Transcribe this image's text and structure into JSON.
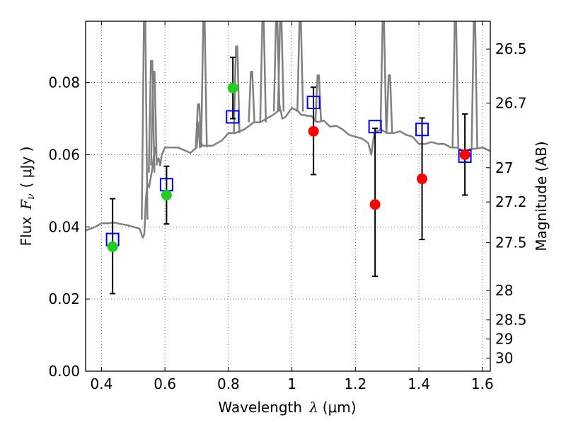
{
  "chart_data": {
    "type": "scatter",
    "xlabel": {
      "prefix": "Wavelength",
      "symbol": "λ",
      "unit": "(μm)"
    },
    "ylabel": {
      "prefix": "Flux",
      "symbol": "F",
      "subscript": "ν",
      "unit": "( μJy )"
    },
    "y2label": "Magnitude (AB)",
    "xlim": [
      0.35,
      1.625
    ],
    "ylim": [
      0.0,
      0.097
    ],
    "grid": true,
    "x_ticks": [
      0.4,
      0.6,
      0.8,
      1.0,
      1.2,
      1.4,
      1.6
    ],
    "x_tick_labels": [
      "0.4",
      "0.6",
      "0.8",
      "1",
      "1.2",
      "1.4",
      "1.6"
    ],
    "y_ticks": [
      0.0,
      0.02,
      0.04,
      0.06,
      0.08
    ],
    "y_tick_labels": [
      "0.00",
      "0.02",
      "0.04",
      "0.06",
      "0.08"
    ],
    "y2_ticks": [
      {
        "label": "26.5",
        "flux": 0.0893
      },
      {
        "label": "26.7",
        "flux": 0.0743
      },
      {
        "label": "27",
        "flux": 0.0564
      },
      {
        "label": "27.2",
        "flux": 0.0469
      },
      {
        "label": "27.5",
        "flux": 0.0356
      },
      {
        "label": "28",
        "flux": 0.0224
      },
      {
        "label": "28.5",
        "flux": 0.0142
      },
      {
        "label": "29",
        "flux": 0.0089
      },
      {
        "label": "30",
        "flux": 0.0036
      }
    ],
    "series": [
      {
        "name": "model_spectrum",
        "kind": "line",
        "color": "#808080",
        "x": [
          0.35,
          0.38,
          0.4,
          0.42,
          0.44,
          0.46,
          0.48,
          0.5,
          0.52,
          0.53,
          0.535,
          0.54,
          0.545,
          0.55,
          0.56,
          0.565,
          0.57,
          0.575,
          0.58,
          0.585,
          0.59,
          0.6,
          0.62,
          0.64,
          0.66,
          0.68,
          0.7,
          0.705,
          0.71,
          0.715,
          0.72,
          0.73,
          0.75,
          0.78,
          0.8,
          0.82,
          0.85,
          0.88,
          0.9,
          0.92,
          0.94,
          0.955,
          0.96,
          0.965,
          0.97,
          0.98,
          1.0,
          1.02,
          1.03,
          1.035,
          1.04,
          1.05,
          1.06,
          1.08,
          1.1,
          1.12,
          1.14,
          1.16,
          1.18,
          1.2,
          1.22,
          1.24,
          1.25,
          1.26,
          1.28,
          1.3,
          1.32,
          1.34,
          1.36,
          1.38,
          1.4,
          1.42,
          1.44,
          1.46,
          1.48,
          1.5,
          1.52,
          1.54,
          1.56,
          1.58,
          1.6,
          1.625
        ],
        "y": [
          0.039,
          0.04,
          0.041,
          0.041,
          0.0412,
          0.0408,
          0.0405,
          0.04,
          0.0395,
          0.037,
          0.038,
          0.048,
          0.052,
          0.051,
          0.056,
          0.06,
          0.062,
          0.058,
          0.059,
          0.057,
          0.06,
          0.062,
          0.062,
          0.062,
          0.0613,
          0.0605,
          0.062,
          0.069,
          0.062,
          0.063,
          0.0625,
          0.0625,
          0.0625,
          0.064,
          0.066,
          0.066,
          0.067,
          0.069,
          0.069,
          0.07,
          0.071,
          0.072,
          0.074,
          0.072,
          0.07,
          0.0705,
          0.073,
          0.072,
          0.071,
          0.071,
          0.071,
          0.0707,
          0.0708,
          0.069,
          0.0695,
          0.0678,
          0.068,
          0.067,
          0.0655,
          0.065,
          0.0645,
          0.0633,
          0.06,
          0.0662,
          0.067,
          0.066,
          0.066,
          0.0665,
          0.0655,
          0.065,
          0.063,
          0.063,
          0.0635,
          0.063,
          0.063,
          0.062,
          0.062,
          0.061,
          0.0615,
          0.0617,
          0.062,
          0.061
        ]
      },
      {
        "name": "emission_lines",
        "kind": "spikes",
        "color": "#808080",
        "lines": [
          {
            "x": 0.536,
            "y0": 0.042,
            "peak": 0.097
          },
          {
            "x": 0.558,
            "y0": 0.055,
            "peak": 0.086
          },
          {
            "x": 0.565,
            "y0": 0.057,
            "peak": 0.083
          },
          {
            "x": 0.706,
            "y0": 0.062,
            "peak": 0.074
          },
          {
            "x": 0.723,
            "y0": 0.062,
            "peak": 0.097
          },
          {
            "x": 0.826,
            "y0": 0.066,
            "peak": 0.09
          },
          {
            "x": 0.873,
            "y0": 0.069,
            "peak": 0.083
          },
          {
            "x": 0.909,
            "y0": 0.069,
            "peak": 0.097
          },
          {
            "x": 0.952,
            "y0": 0.072,
            "peak": 0.097
          },
          {
            "x": 0.965,
            "y0": 0.072,
            "peak": 0.097
          },
          {
            "x": 1.026,
            "y0": 0.072,
            "peak": 0.097
          },
          {
            "x": 1.083,
            "y0": 0.069,
            "peak": 0.082
          },
          {
            "x": 1.288,
            "y0": 0.067,
            "peak": 0.097
          },
          {
            "x": 1.307,
            "y0": 0.066,
            "peak": 0.082
          },
          {
            "x": 1.515,
            "y0": 0.062,
            "peak": 0.097
          },
          {
            "x": 1.575,
            "y0": 0.0615,
            "peak": 0.097
          }
        ]
      },
      {
        "name": "model_photometry",
        "kind": "open_square",
        "color": "#0000ff",
        "x": [
          0.435,
          0.605,
          0.813,
          1.068,
          1.262,
          1.41,
          1.545
        ],
        "y": [
          0.0365,
          0.0517,
          0.0705,
          0.0745,
          0.0678,
          0.067,
          0.0596
        ]
      },
      {
        "name": "detections_hst",
        "kind": "filled_circle",
        "color": "#22cc22",
        "x": [
          0.435,
          0.605,
          0.814
        ],
        "y": [
          0.0345,
          0.0488,
          0.0785
        ],
        "err_low": [
          0.0215,
          0.0408,
          0.07
        ],
        "err_high": [
          0.0478,
          0.0568,
          0.087
        ]
      },
      {
        "name": "detections_ir",
        "kind": "filled_circle",
        "color": "#ff0000",
        "x": [
          1.068,
          1.262,
          1.41,
          1.545
        ],
        "y": [
          0.0665,
          0.0462,
          0.0533,
          0.06
        ],
        "err_low": [
          0.0545,
          0.0263,
          0.0365,
          0.0488
        ],
        "err_high": [
          0.0787,
          0.0673,
          0.0702,
          0.0713
        ]
      }
    ]
  }
}
